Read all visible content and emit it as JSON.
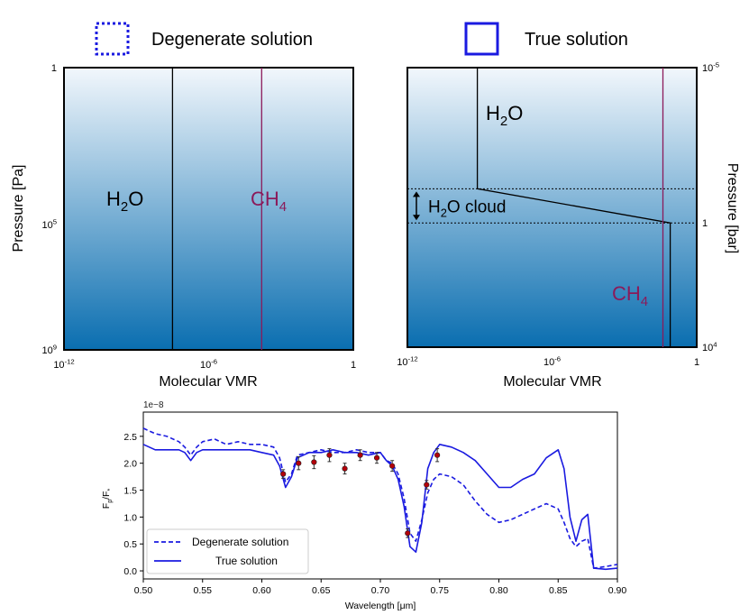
{
  "legend_top": {
    "degenerate_label": "Degenerate solution",
    "true_label": "True solution",
    "color": "#1a1ae0"
  },
  "chart_data": [
    {
      "type": "line",
      "panel": "left",
      "title": "",
      "xlabel": "Molecular VMR",
      "ylabel": "Pressure [Pa]",
      "x_ticks": [
        {
          "label": "10",
          "sup": "-12",
          "value": -12
        },
        {
          "label": "10",
          "sup": "-6",
          "value": -6
        },
        {
          "label": "1",
          "sup": "",
          "value": 0
        }
      ],
      "y_ticks_left": [
        {
          "label": "1",
          "sup": "",
          "value": 0
        },
        {
          "label": "10",
          "sup": "5",
          "value": 5
        },
        {
          "label": "10",
          "sup": "9",
          "value": 9
        }
      ],
      "xlim_log10": [
        -12,
        0
      ],
      "ylim_log10": [
        0,
        9
      ],
      "gradient": {
        "top": "#f2f7fc",
        "bottom": "#0a6eb0"
      },
      "profiles": [
        {
          "name": "H2O",
          "label_main": "H",
          "label_sub": "2",
          "label_tail": "O",
          "color": "#000000",
          "points": [
            [
              -7.5,
              0
            ],
            [
              -7.5,
              9
            ]
          ]
        },
        {
          "name": "CH4",
          "label_main": "CH",
          "label_sub": "4",
          "label_tail": "",
          "color": "#8b1a5a",
          "points": [
            [
              -3.8,
              0
            ],
            [
              -3.8,
              9
            ]
          ]
        }
      ]
    },
    {
      "type": "line",
      "panel": "right",
      "title": "",
      "xlabel": "Molecular VMR",
      "ylabel": "Pressure [bar]",
      "x_ticks": [
        {
          "label": "10",
          "sup": "-12",
          "value": -12
        },
        {
          "label": "10",
          "sup": "-6",
          "value": -6
        },
        {
          "label": "1",
          "sup": "",
          "value": 0
        }
      ],
      "y_ticks_right": [
        {
          "label": "10",
          "sup": "-5",
          "value": -5
        },
        {
          "label": "1",
          "sup": "",
          "value": 0
        },
        {
          "label": "10",
          "sup": "4",
          "value": 4
        }
      ],
      "xlim_log10": [
        -12,
        0
      ],
      "ylim_log10": [
        -5,
        4
      ],
      "gradient": {
        "top": "#f2f7fc",
        "bottom": "#0a6eb0"
      },
      "cloud": {
        "label": "H₂O cloud",
        "label_main": "H",
        "label_sub": "2",
        "label_tail": "O cloud",
        "top_log10": -1.1,
        "bottom_log10": 0.0
      },
      "profiles": [
        {
          "name": "H2O",
          "label_main": "H",
          "label_sub": "2",
          "label_tail": "O",
          "color": "#000000",
          "points": [
            [
              -9.1,
              -5
            ],
            [
              -9.1,
              -1.1
            ],
            [
              -1.1,
              0.0
            ],
            [
              -1.1,
              4
            ]
          ]
        },
        {
          "name": "CH4",
          "label_main": "CH",
          "label_sub": "4",
          "label_tail": "",
          "color": "#8b1a5a",
          "points": [
            [
              -1.4,
              -5
            ],
            [
              -1.4,
              4
            ]
          ]
        }
      ]
    },
    {
      "type": "line",
      "panel": "bottom",
      "title": "",
      "offset_text": "1e−8",
      "xlabel": "Wavelength [μm]",
      "ylabel": "Fp/F*",
      "xlim": [
        0.5,
        0.9
      ],
      "ylim": [
        -0.15,
        2.95
      ],
      "x_ticks": [
        0.5,
        0.55,
        0.6,
        0.65,
        0.7,
        0.75,
        0.8,
        0.85,
        0.9
      ],
      "x_tick_labels": [
        "0.50",
        "0.55",
        "0.60",
        "0.65",
        "0.70",
        "0.75",
        "0.80",
        "0.85",
        "0.90"
      ],
      "y_ticks": [
        0.0,
        0.5,
        1.0,
        1.5,
        2.0,
        2.5
      ],
      "y_tick_labels": [
        "0.0",
        "0.5",
        "1.0",
        "1.5",
        "2.0",
        "2.5"
      ],
      "series": [
        {
          "name": "Degenerate solution",
          "style": "dashed",
          "color": "#1a1ae0",
          "x": [
            0.5,
            0.51,
            0.52,
            0.53,
            0.535,
            0.54,
            0.545,
            0.55,
            0.56,
            0.57,
            0.58,
            0.59,
            0.6,
            0.61,
            0.615,
            0.62,
            0.625,
            0.63,
            0.64,
            0.65,
            0.66,
            0.67,
            0.68,
            0.69,
            0.7,
            0.705,
            0.71,
            0.715,
            0.72,
            0.725,
            0.73,
            0.735,
            0.74,
            0.745,
            0.75,
            0.76,
            0.77,
            0.78,
            0.79,
            0.8,
            0.81,
            0.82,
            0.83,
            0.84,
            0.85,
            0.855,
            0.86,
            0.865,
            0.87,
            0.875,
            0.88,
            0.89,
            0.9
          ],
          "y": [
            2.65,
            2.55,
            2.5,
            2.4,
            2.3,
            2.15,
            2.3,
            2.4,
            2.45,
            2.35,
            2.4,
            2.35,
            2.35,
            2.3,
            2.1,
            1.65,
            1.8,
            2.15,
            2.2,
            2.25,
            2.2,
            2.2,
            2.25,
            2.2,
            2.2,
            2.05,
            2.0,
            1.8,
            1.35,
            0.7,
            0.55,
            0.95,
            1.45,
            1.7,
            1.8,
            1.75,
            1.6,
            1.3,
            1.05,
            0.9,
            0.95,
            1.05,
            1.15,
            1.25,
            1.15,
            0.9,
            0.6,
            0.45,
            0.55,
            0.6,
            0.05,
            0.08,
            0.12
          ]
        },
        {
          "name": "True solution",
          "style": "solid",
          "color": "#1a1ae0",
          "x": [
            0.5,
            0.51,
            0.52,
            0.53,
            0.535,
            0.54,
            0.545,
            0.55,
            0.56,
            0.57,
            0.58,
            0.59,
            0.6,
            0.61,
            0.615,
            0.62,
            0.625,
            0.63,
            0.64,
            0.65,
            0.66,
            0.67,
            0.68,
            0.69,
            0.7,
            0.705,
            0.71,
            0.715,
            0.72,
            0.725,
            0.73,
            0.735,
            0.74,
            0.745,
            0.75,
            0.76,
            0.77,
            0.78,
            0.79,
            0.8,
            0.81,
            0.82,
            0.83,
            0.84,
            0.85,
            0.855,
            0.86,
            0.865,
            0.87,
            0.875,
            0.88,
            0.89,
            0.9
          ],
          "y": [
            2.35,
            2.25,
            2.25,
            2.25,
            2.2,
            2.05,
            2.2,
            2.25,
            2.25,
            2.25,
            2.25,
            2.25,
            2.2,
            2.15,
            1.95,
            1.55,
            1.75,
            2.1,
            2.2,
            2.2,
            2.25,
            2.2,
            2.2,
            2.15,
            2.2,
            2.05,
            1.95,
            1.7,
            1.2,
            0.45,
            0.35,
            0.9,
            1.9,
            2.2,
            2.35,
            2.3,
            2.2,
            2.05,
            1.8,
            1.55,
            1.55,
            1.7,
            1.8,
            2.1,
            2.25,
            1.9,
            1.0,
            0.55,
            0.95,
            1.05,
            0.05,
            0.03,
            0.05
          ]
        }
      ],
      "observations": {
        "color": "#b3000a",
        "x": [
          0.618,
          0.631,
          0.644,
          0.657,
          0.67,
          0.683,
          0.697,
          0.71,
          0.723,
          0.739,
          0.748
        ],
        "y": [
          1.8,
          2.0,
          2.02,
          2.15,
          1.9,
          2.15,
          2.1,
          1.95,
          0.7,
          1.6,
          2.15
        ],
        "err": [
          0.08,
          0.12,
          0.12,
          0.12,
          0.1,
          0.1,
          0.1,
          0.1,
          0.08,
          0.08,
          0.12
        ]
      },
      "legend": {
        "placement": "lower-left",
        "entries": [
          {
            "label": "Degenerate solution",
            "style": "dashed"
          },
          {
            "label": "True solution",
            "style": "solid"
          }
        ]
      }
    }
  ]
}
